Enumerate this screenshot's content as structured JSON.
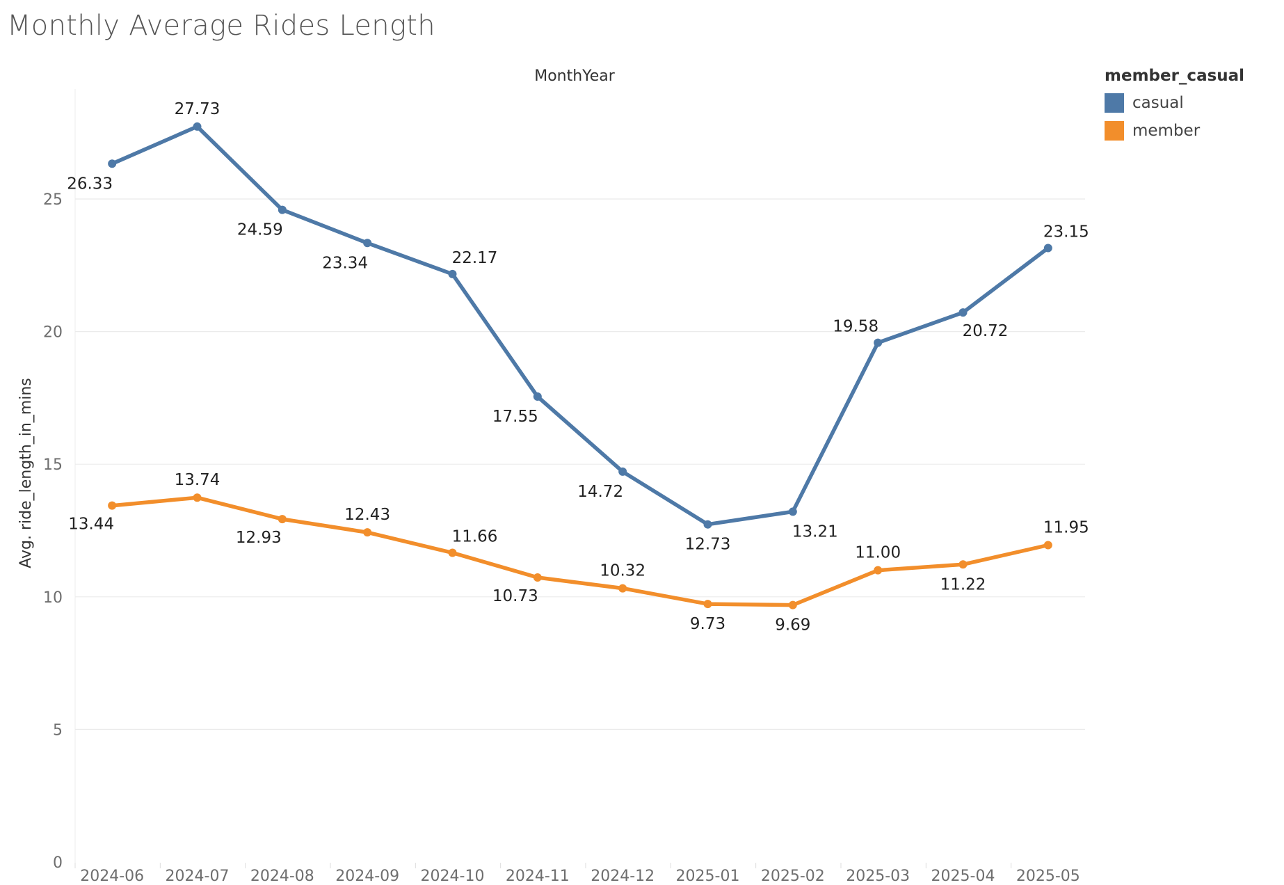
{
  "chart_data": {
    "type": "line",
    "title": "Monthly Average Rides Length",
    "xlabel": "MonthYear",
    "ylabel": "Avg. ride_length_in_mins",
    "categories": [
      "2024-06",
      "2024-07",
      "2024-08",
      "2024-09",
      "2024-10",
      "2024-11",
      "2024-12",
      "2025-01",
      "2025-02",
      "2025-03",
      "2025-04",
      "2025-05"
    ],
    "ylim": [
      0,
      28
    ],
    "yticks": [
      0,
      5,
      10,
      15,
      20,
      25
    ],
    "grid": true,
    "legend": {
      "title": "member_casual",
      "position": "top-right"
    },
    "series": [
      {
        "name": "casual",
        "color": "#4e79a7",
        "values": [
          26.33,
          27.73,
          24.59,
          23.34,
          22.17,
          17.55,
          14.72,
          12.73,
          13.21,
          19.58,
          20.72,
          23.15
        ],
        "labels": [
          "26.33",
          "27.73",
          "24.59",
          "23.34",
          "22.17",
          "17.55",
          "14.72",
          "12.73",
          "13.21",
          "19.58",
          "20.72",
          "23.15"
        ]
      },
      {
        "name": "member",
        "color": "#f28e2b",
        "values": [
          13.44,
          13.74,
          12.93,
          12.43,
          11.66,
          10.73,
          10.32,
          9.73,
          9.69,
          11.0,
          11.22,
          11.95
        ],
        "labels": [
          "13.44",
          "13.74",
          "12.93",
          "12.43",
          "11.66",
          "10.73",
          "10.32",
          "9.73",
          "9.69",
          "11.00",
          "11.22",
          "11.95"
        ]
      }
    ]
  }
}
